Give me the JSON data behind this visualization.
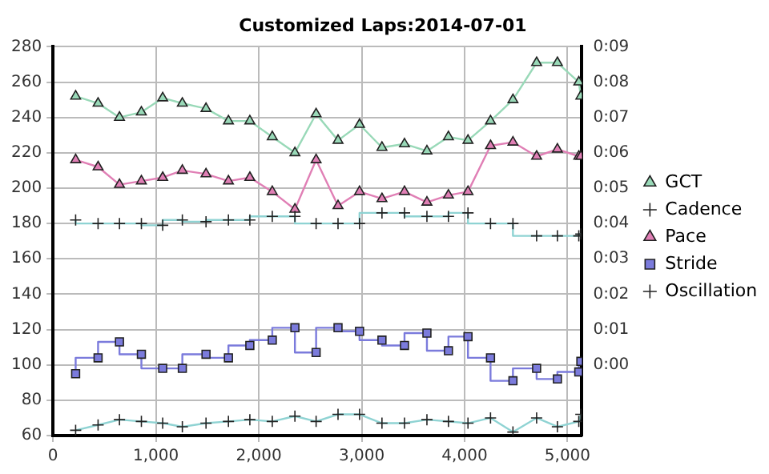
{
  "chart_data": {
    "type": "line",
    "title": "Customized Laps:2014-07-01",
    "x": [
      220,
      438,
      646,
      859,
      1066,
      1257,
      1487,
      1705,
      1913,
      2131,
      2351,
      2557,
      2770,
      2979,
      3197,
      3416,
      3634,
      3843,
      4033,
      4252,
      4470,
      4700,
      4902,
      5110,
      5130
    ],
    "series": [
      {
        "name": "GCT",
        "color": "#99d9b8",
        "marker": "triangle",
        "values": [
          252,
          248,
          240,
          243,
          251,
          248,
          245,
          238,
          238,
          229,
          220,
          242,
          227,
          236,
          223,
          225,
          221,
          229,
          227,
          238,
          250,
          271,
          271,
          260,
          252
        ]
      },
      {
        "name": "Cadence",
        "type": "step",
        "color": "#8fd3d3",
        "marker": "cross",
        "values": [
          182,
          180,
          180,
          180,
          179,
          182,
          181,
          182,
          182,
          184,
          184,
          180,
          180,
          180,
          186,
          186,
          184,
          184,
          186,
          180,
          180,
          173,
          173,
          173,
          174
        ]
      },
      {
        "name": "Pace",
        "axis": "y2",
        "color": "#e07fb5",
        "marker": "triangle",
        "values": [
          5.8,
          5.6,
          5.1,
          5.2,
          5.3,
          5.5,
          5.4,
          5.2,
          5.3,
          4.9,
          4.4,
          5.8,
          4.5,
          4.9,
          4.7,
          4.9,
          4.6,
          4.8,
          4.9,
          6.2,
          6.3,
          5.9,
          6.1,
          5.9,
          5.9
        ]
      },
      {
        "name": "Stride",
        "type": "step",
        "color": "#7b7bdc",
        "marker": "square",
        "values": [
          95,
          104,
          113,
          106,
          98,
          98,
          106,
          104,
          111,
          114,
          121,
          107,
          121,
          119,
          114,
          111,
          118,
          108,
          116,
          104,
          91,
          98,
          92,
          96,
          102
        ]
      },
      {
        "name": "Oscillation",
        "color": "#8fd3d3",
        "marker": "cross",
        "values": [
          63,
          66,
          69,
          68,
          67,
          65,
          67,
          68,
          69,
          68,
          71,
          68,
          72,
          72,
          67,
          67,
          69,
          68,
          67,
          70,
          62,
          70,
          65,
          68,
          72
        ]
      }
    ],
    "xlim": [
      0,
      5140
    ],
    "xticks": [
      0,
      {
        "value": 1000,
        "label": "1,000"
      },
      {
        "value": 2000,
        "label": "2,000"
      },
      {
        "value": 3000,
        "label": "3,000"
      },
      {
        "value": 4000,
        "label": "4,000"
      },
      {
        "value": 5000,
        "label": "5,000"
      }
    ],
    "ylim": [
      60,
      280
    ],
    "yticks": [
      60,
      80,
      100,
      120,
      140,
      160,
      180,
      200,
      220,
      240,
      260,
      280
    ],
    "y2lim": [
      -2,
      9
    ],
    "y2ticks": [
      {
        "value": -1,
        "label": null
      },
      {
        "value": 0,
        "label": "0:00"
      },
      {
        "value": 1,
        "label": "0:01"
      },
      {
        "value": 2,
        "label": "0:02"
      },
      {
        "value": 3,
        "label": "0:03"
      },
      {
        "value": 4,
        "label": "0:04"
      },
      {
        "value": 5,
        "label": "0:05"
      },
      {
        "value": 6,
        "label": "0:06"
      },
      {
        "value": 7,
        "label": "0:07"
      },
      {
        "value": 8,
        "label": "0:08"
      },
      {
        "value": 9,
        "label": "0:09"
      }
    ],
    "grid": true,
    "line_style": "solid",
    "legend": "right"
  }
}
